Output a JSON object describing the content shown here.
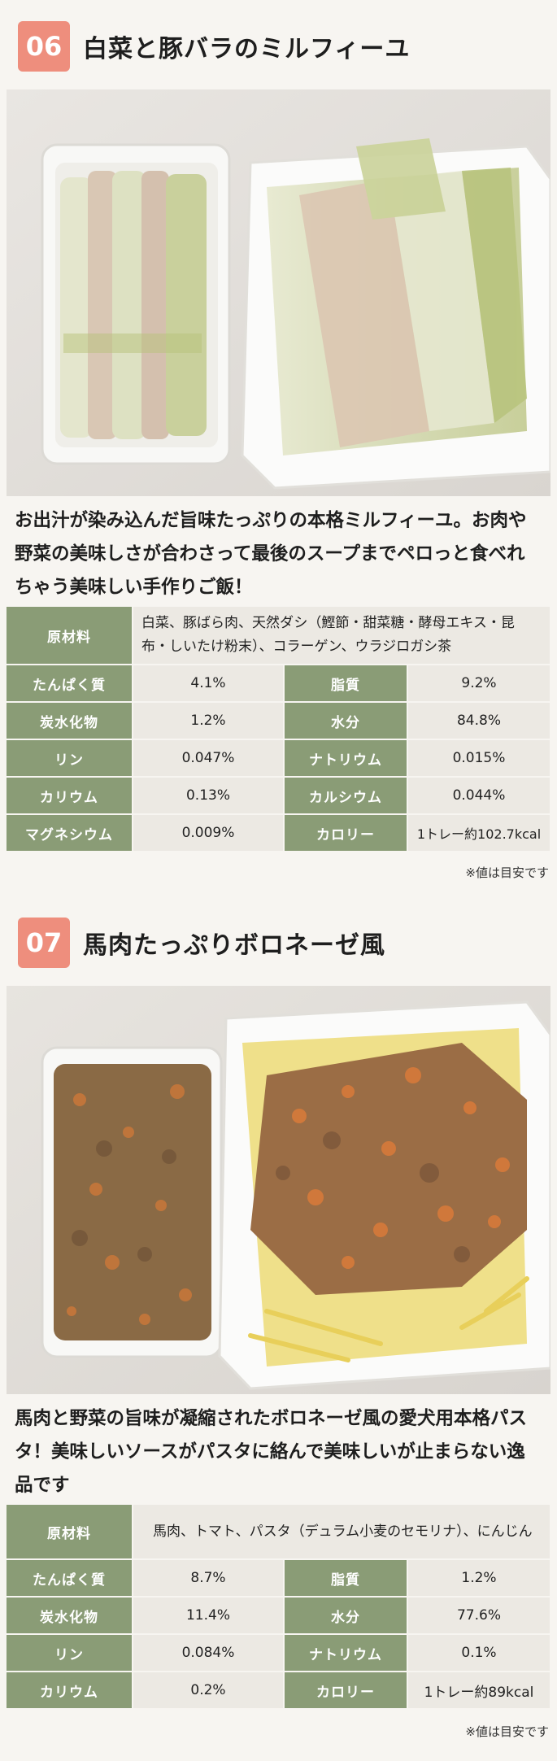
{
  "recipes": [
    {
      "number": "06",
      "title": "白菜と豚バラのミルフィーユ",
      "description": "お出汁が染み込んだ旨味たっぷりの本格ミルフィーユ。お肉や野菜の美味しさが合わさって最後のスープまでペロっと食べれちゃう美味しい手作りご飯！",
      "ingredients_label": "原材料",
      "ingredients": "白菜、豚ばら肉、天然ダシ（鰹節・甜菜糖・酵母エキス・昆布・しいたけ粉末）、コラーゲン、ウラジロガシ茶",
      "nutrition": [
        {
          "l1": "たんぱく質",
          "v1": "4.1%",
          "l2": "脂質",
          "v2": "9.2%"
        },
        {
          "l1": "炭水化物",
          "v1": "1.2%",
          "l2": "水分",
          "v2": "84.8%"
        },
        {
          "l1": "リン",
          "v1": "0.047%",
          "l2": "ナトリウム",
          "v2": "0.015%"
        },
        {
          "l1": "カリウム",
          "v1": "0.13%",
          "l2": "カルシウム",
          "v2": "0.044%"
        },
        {
          "l1": "マグネシウム",
          "v1": "0.009%",
          "l2": "カロリー",
          "v2": "1トレー約102.7kcal"
        }
      ],
      "note": "※値は目安です"
    },
    {
      "number": "07",
      "title": "馬肉たっぷりボロネーゼ風",
      "description": "馬肉と野菜の旨味が凝縮されたボロネーゼ風の愛犬用本格パスタ！美味しいソースがパスタに絡んで美味しいが止まらない逸品です",
      "ingredients_label": "原材料",
      "ingredients": "馬肉、トマト、パスタ（デュラム小麦のセモリナ）、にんじん",
      "nutrition": [
        {
          "l1": "たんぱく質",
          "v1": "8.7%",
          "l2": "脂質",
          "v2": "1.2%"
        },
        {
          "l1": "炭水化物",
          "v1": "11.4%",
          "l2": "水分",
          "v2": "77.6%"
        },
        {
          "l1": "リン",
          "v1": "0.084%",
          "l2": "ナトリウム",
          "v2": "0.1%"
        },
        {
          "l1": "カリウム",
          "v1": "0.2%",
          "l2": "カロリー",
          "v2": "1トレー約89kcal"
        }
      ],
      "note": "※値は目安です"
    }
  ]
}
